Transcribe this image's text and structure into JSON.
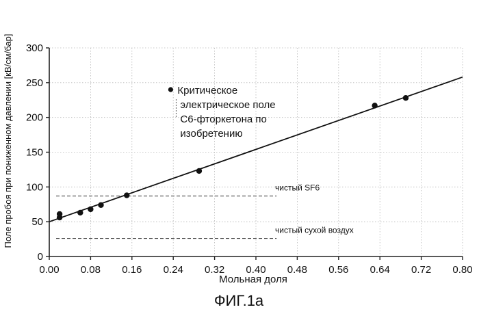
{
  "figure_caption": "ФИГ.1а",
  "chart_data": {
    "type": "scatter",
    "xlabel": "Мольная доля",
    "ylabel": "Поле пробоя при пониженном давлении [кВ/см/бар]",
    "xlim": [
      0.0,
      0.8
    ],
    "ylim": [
      0,
      300
    ],
    "x_ticks": [
      "0.00",
      "0.08",
      "0.16",
      "0.24",
      "0.32",
      "0.40",
      "0.48",
      "0.56",
      "0.64",
      "0.72",
      "0.80"
    ],
    "y_ticks": [
      "0",
      "50",
      "100",
      "150",
      "200",
      "250",
      "300"
    ],
    "grid": true,
    "series": [
      {
        "points": [
          {
            "x": 0.02,
            "y": 56
          },
          {
            "x": 0.02,
            "y": 61
          },
          {
            "x": 0.06,
            "y": 63
          },
          {
            "x": 0.08,
            "y": 68
          },
          {
            "x": 0.1,
            "y": 74
          },
          {
            "x": 0.15,
            "y": 88
          },
          {
            "x": 0.29,
            "y": 123
          },
          {
            "x": 0.63,
            "y": 217
          },
          {
            "x": 0.69,
            "y": 228
          }
        ]
      }
    ],
    "fit_line": {
      "x": [
        0.0,
        0.8
      ],
      "y": [
        50,
        258
      ]
    },
    "reference_lines": [
      {
        "name": "чистый SF6",
        "y": 87,
        "x_range": [
          0.0,
          0.44
        ]
      },
      {
        "name": "чистый сухой воздух",
        "y": 26,
        "x_range": [
          0.0,
          0.44
        ]
      }
    ],
    "annotation": {
      "point": {
        "x": 0.235,
        "y": 240
      },
      "lines": [
        "Критическое",
        "электрическое поле",
        "С6-фторкетона по",
        "изобретению"
      ]
    }
  }
}
